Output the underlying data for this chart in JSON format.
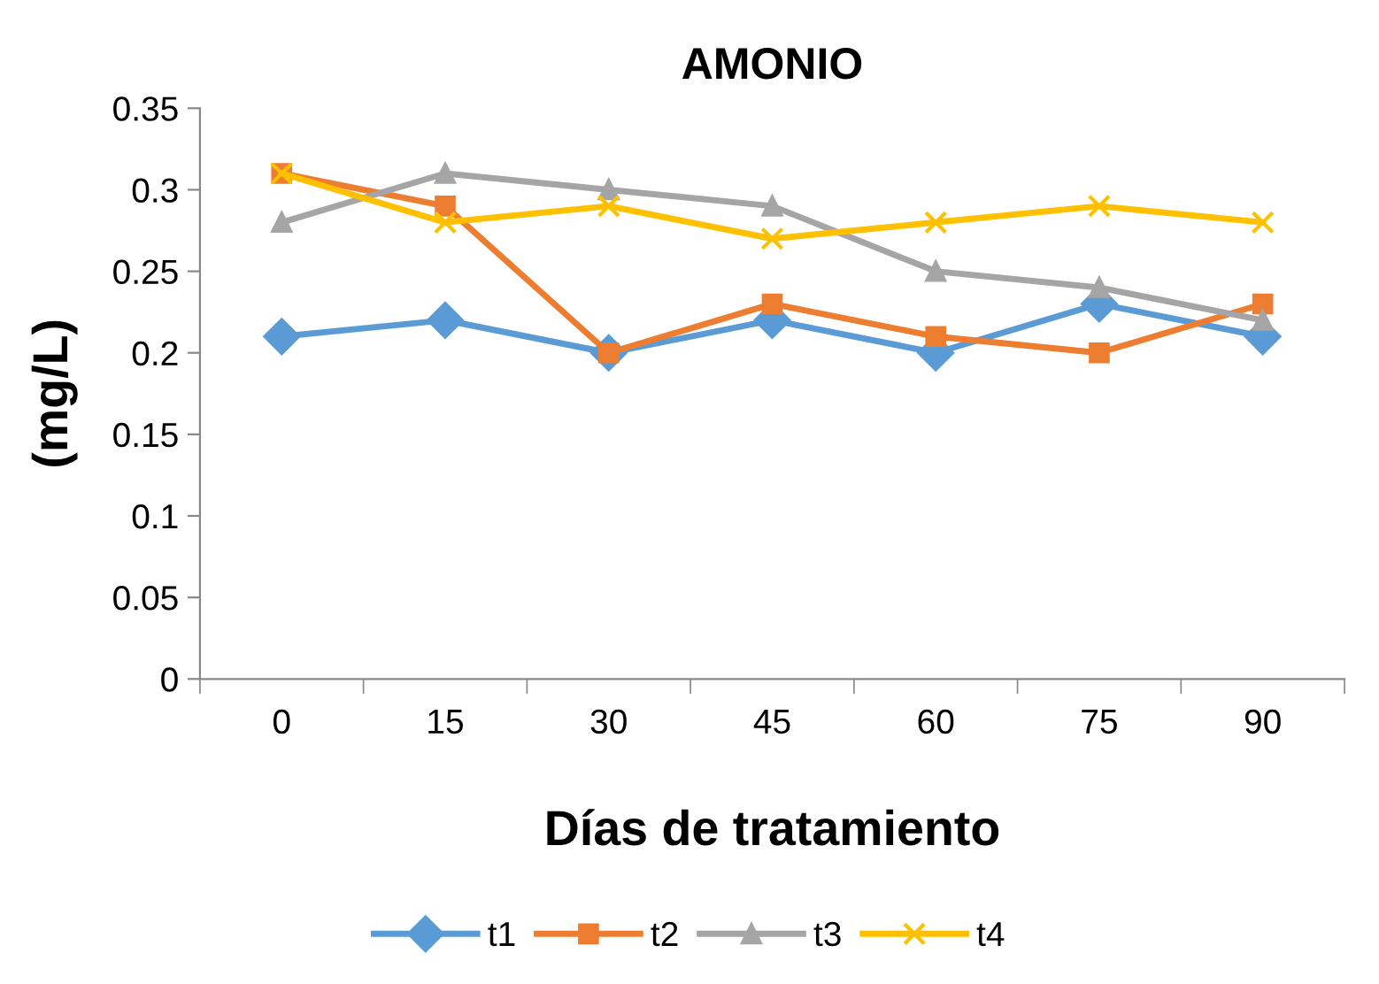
{
  "chart_data": {
    "type": "line",
    "title": "AMONIO",
    "xlabel": "Días de tratamiento",
    "ylabel": "(mg/L)",
    "categories": [
      "0",
      "15",
      "30",
      "45",
      "60",
      "75",
      "90"
    ],
    "series": [
      {
        "name": "t1",
        "color": "#5b9bd5",
        "marker": "diamond",
        "values": [
          0.21,
          0.22,
          0.2,
          0.22,
          0.2,
          0.23,
          0.21
        ]
      },
      {
        "name": "t2",
        "color": "#ed7d31",
        "marker": "square",
        "values": [
          0.31,
          0.29,
          0.2,
          0.23,
          0.21,
          0.2,
          0.23
        ]
      },
      {
        "name": "t3",
        "color": "#a5a5a5",
        "marker": "triangle",
        "values": [
          0.28,
          0.31,
          0.3,
          0.29,
          0.25,
          0.24,
          0.22
        ]
      },
      {
        "name": "t4",
        "color": "#ffc000",
        "marker": "cross",
        "values": [
          0.31,
          0.28,
          0.29,
          0.27,
          0.28,
          0.29,
          0.28
        ]
      }
    ],
    "ylim": [
      0,
      0.35
    ],
    "yticks": [
      0,
      0.05,
      0.1,
      0.15,
      0.2,
      0.25,
      0.3,
      0.35
    ],
    "grid": false,
    "legend": "bottom"
  }
}
